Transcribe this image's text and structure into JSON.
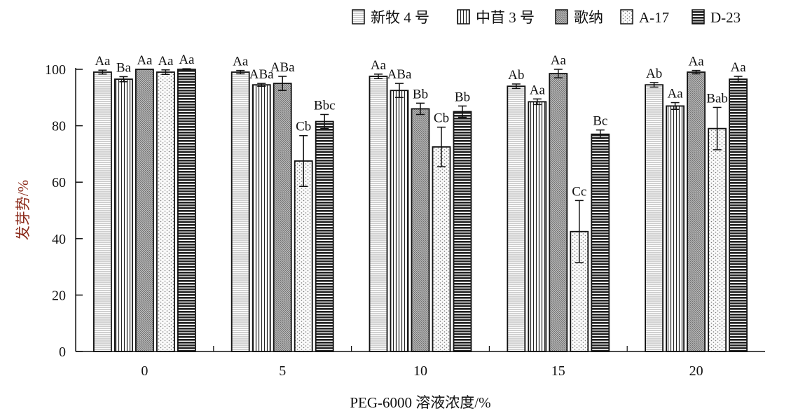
{
  "chart_data": {
    "type": "bar",
    "title": "",
    "xlabel": "PEG-6000 溶液浓度/%",
    "ylabel": "发芽势/%",
    "ylim": [
      0,
      100
    ],
    "yticks": [
      0,
      20,
      40,
      60,
      80,
      100
    ],
    "categories": [
      "0",
      "5",
      "10",
      "15",
      "20"
    ],
    "legend_position": "top-right",
    "series": [
      {
        "name": "新牧 4 号",
        "pattern": "hlines-light",
        "values": [
          99,
          99,
          97.5,
          94,
          94.5
        ],
        "errors": [
          0.7,
          0.6,
          0.8,
          0.8,
          0.8
        ],
        "labels": [
          "Aa",
          "Aa",
          "Aa",
          "Ab",
          "Ab"
        ]
      },
      {
        "name": "中苜 3 号",
        "pattern": "vlines",
        "values": [
          96.5,
          94.5,
          92.5,
          88.5,
          87
        ],
        "errors": [
          0.9,
          0.5,
          2.5,
          1,
          1.2
        ],
        "labels": [
          "Ba",
          "ABa",
          "ABa",
          "Aa",
          "Aa"
        ]
      },
      {
        "name": "歌纳",
        "pattern": "diagonal",
        "values": [
          100,
          95,
          86,
          98.5,
          99
        ],
        "errors": [
          0,
          2.5,
          2,
          1.5,
          0.6
        ],
        "labels": [
          "Aa",
          "ABa",
          "Bb",
          "Aa",
          "Aa"
        ]
      },
      {
        "name": "A-17",
        "pattern": "dots",
        "values": [
          99,
          67.5,
          72.5,
          42.5,
          79
        ],
        "errors": [
          0.8,
          9,
          7,
          11,
          7.5
        ],
        "labels": [
          "Aa",
          "Cb",
          "Cb",
          "Cc",
          "Bab"
        ]
      },
      {
        "name": "D-23",
        "pattern": "hlines-dark",
        "values": [
          100,
          81.5,
          85,
          77,
          96.5
        ],
        "errors": [
          0.2,
          2.5,
          2,
          1.5,
          1
        ],
        "labels": [
          "Aa",
          "Bbc",
          "Bb",
          "Bc",
          "Aa"
        ]
      }
    ],
    "colors": {
      "ylabel": "#8b2a1a",
      "axis": "#111111"
    }
  }
}
